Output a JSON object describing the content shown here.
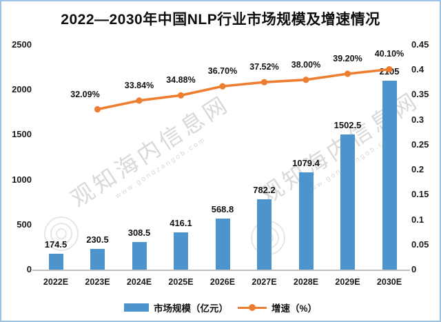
{
  "page": {
    "title": "2022—2030年中国NLP行业市场规模及增速情况"
  },
  "watermark": {
    "site_name": "观知海内信息网",
    "url": "www.gondzangob.com"
  },
  "legend": {
    "bar_label": "市场规模（亿元）",
    "line_label": "增速（%）"
  },
  "colors": {
    "bar": "#4d93cc",
    "line": "#ed7d31",
    "frame": "#9cc2e5"
  },
  "chart_data": {
    "type": "bar",
    "subtype": "combo bar+line, dual axis",
    "title": "2022—2030年中国NLP行业市场规模及增速情况",
    "categories": [
      "2022E",
      "2023E",
      "2024E",
      "2025E",
      "2026E",
      "2027E",
      "2028E",
      "2029E",
      "2030E"
    ],
    "series": [
      {
        "name": "市场规模（亿元）",
        "type": "bar",
        "axis": "left",
        "color": "#4d93cc",
        "values": [
          174.5,
          230.5,
          308.5,
          416.1,
          568.8,
          782.2,
          1079.4,
          1502.5,
          2105
        ],
        "labels": [
          "174.5",
          "230.5",
          "308.5",
          "416.1",
          "568.8",
          "782.2",
          "1079.4",
          "1502.5",
          "2105"
        ]
      },
      {
        "name": "增速（%）",
        "type": "line",
        "axis": "right",
        "color": "#ed7d31",
        "values": [
          null,
          0.3209,
          0.3384,
          0.3488,
          0.367,
          0.3752,
          0.38,
          0.392,
          0.401
        ],
        "labels": [
          null,
          "32.09%",
          "33.84%",
          "34.88%",
          "36.70%",
          "37.52%",
          "38.00%",
          "39.20%",
          "40.10%"
        ]
      }
    ],
    "left_axis": {
      "min": 0,
      "max": 2500,
      "ticks": [
        "0",
        "500",
        "1000",
        "1500",
        "2000",
        "2500"
      ]
    },
    "right_axis": {
      "min": 0,
      "max": 0.45,
      "ticks": [
        "0",
        "0.05",
        "0.1",
        "0.15",
        "0.2",
        "0.25",
        "0.3",
        "0.35",
        "0.4",
        "0.45"
      ]
    },
    "legend_position": "bottom",
    "grid": false
  }
}
